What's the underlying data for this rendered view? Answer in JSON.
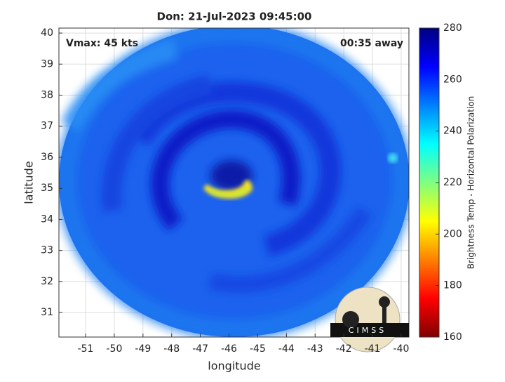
{
  "chart_data": {
    "type": "image",
    "title": "Don: 21-Jul-2023 09:45:00",
    "annotations": [
      "Vmax: 45 kts",
      "00:35 away"
    ],
    "x_label": "longitude",
    "y_label": "latitude",
    "xlim": [
      -51.93,
      -39.73
    ],
    "ylim": [
      30.21,
      40.16
    ],
    "xticks": [
      -51,
      -50,
      -49,
      -48,
      -47,
      -46,
      -45,
      -44,
      -43,
      -42,
      -41,
      -40
    ],
    "yticks": [
      31,
      32,
      33,
      34,
      35,
      36,
      37,
      38,
      39,
      40
    ],
    "grid": true,
    "colorbar": {
      "label": "Brightness Temp - Horizontal Polarization",
      "colormap": "jet",
      "clim": [
        160,
        280
      ],
      "ticks": [
        160,
        180,
        200,
        220,
        240,
        260,
        280
      ]
    }
  },
  "logo": {
    "text": "CIMSS"
  }
}
